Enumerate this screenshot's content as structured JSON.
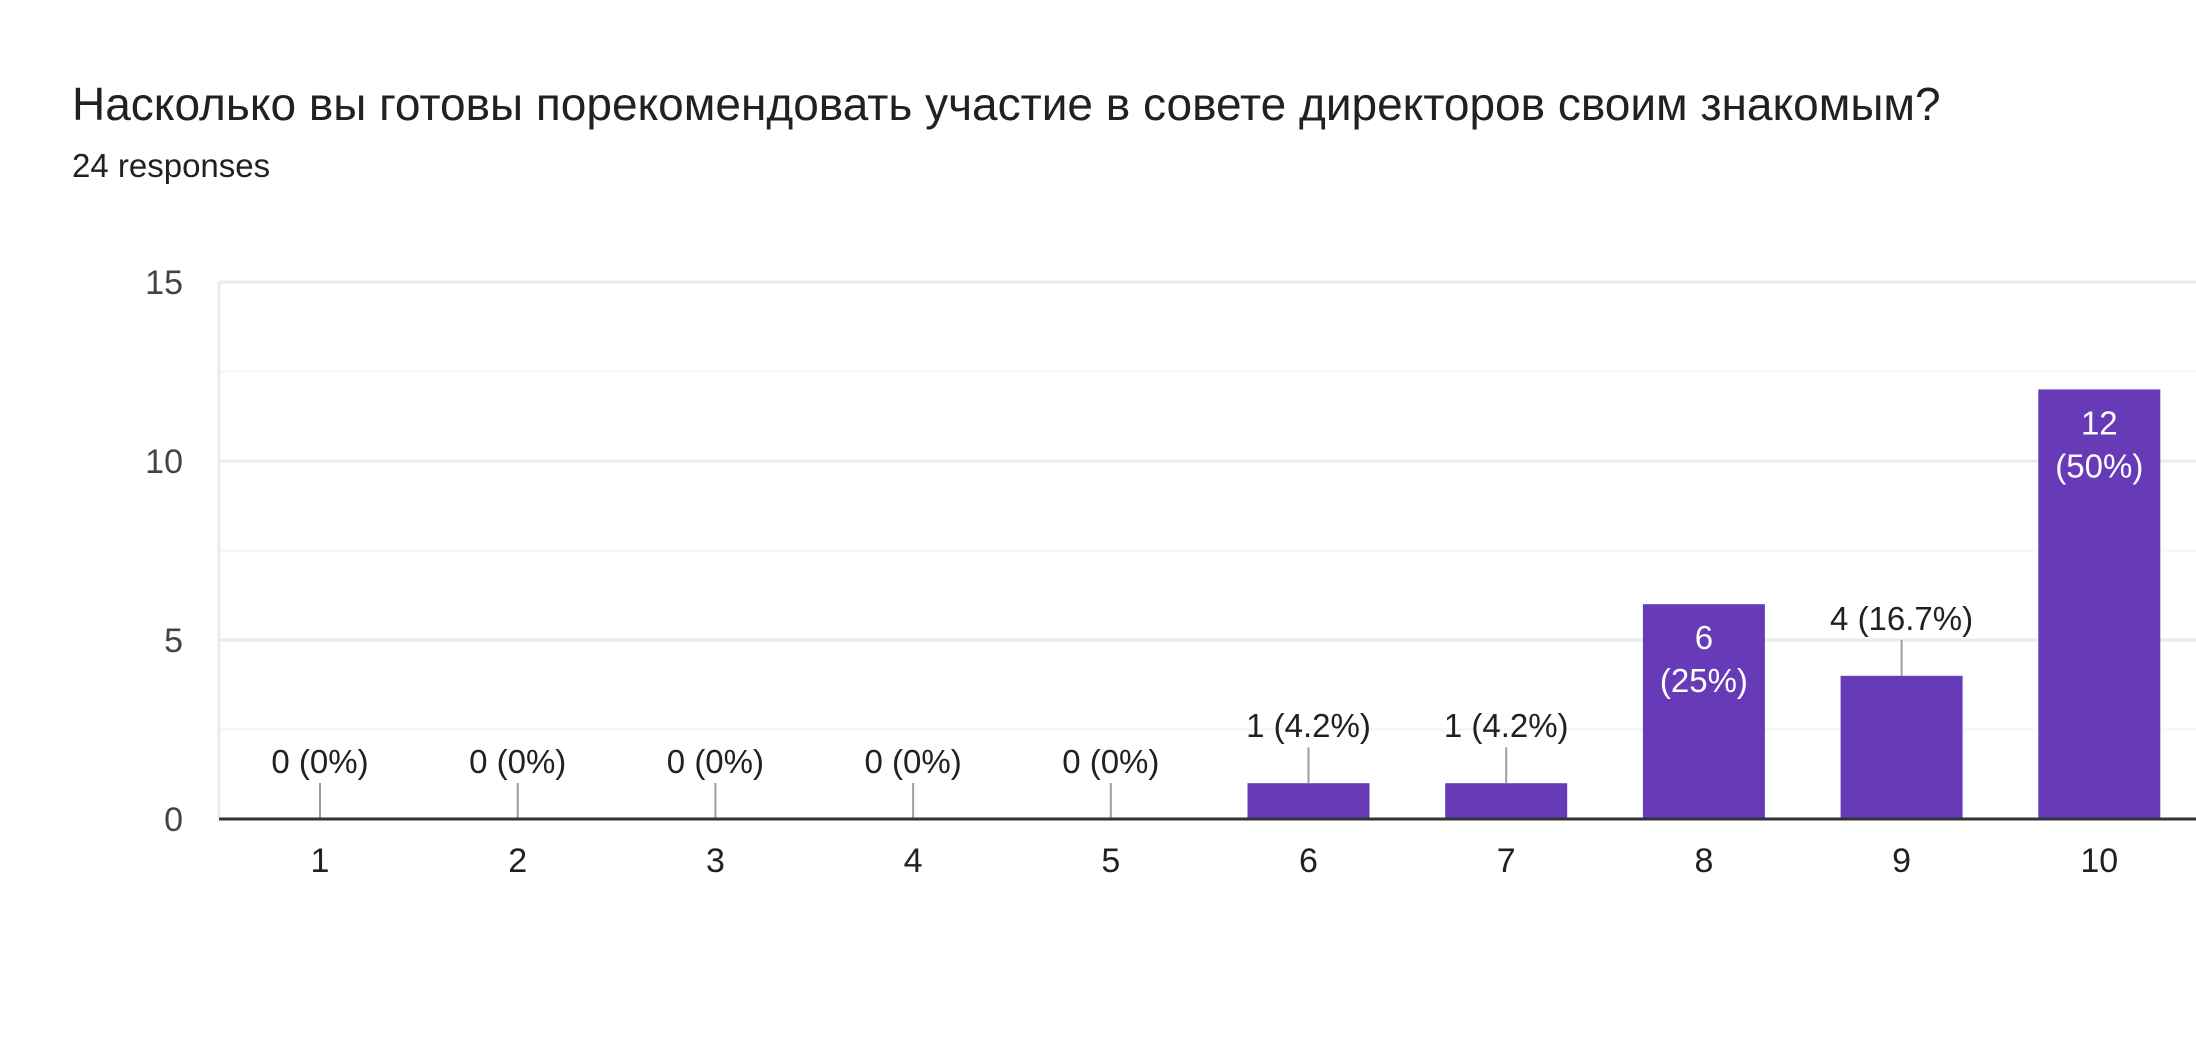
{
  "header": {
    "question": "Насколько вы готовы порекомендовать участие в совете директоров своим знакомым?",
    "responses": "24 responses"
  },
  "colors": {
    "bar": "#673ab7",
    "text": "#202124",
    "axis_text": "#444444",
    "grid": "#ebebeb",
    "grid_minor": "#f5f5f5",
    "axis": "#333333",
    "leader": "#9e9e9e",
    "inside_label": "#ffffff"
  },
  "chart_data": {
    "type": "bar",
    "categories": [
      "1",
      "2",
      "3",
      "4",
      "5",
      "6",
      "7",
      "8",
      "9",
      "10"
    ],
    "values": [
      0,
      0,
      0,
      0,
      0,
      1,
      1,
      6,
      4,
      12
    ],
    "labels": [
      "0 (0%)",
      "0 (0%)",
      "0 (0%)",
      "0 (0%)",
      "0 (0%)",
      "1 (4.2%)",
      "1 (4.2%)",
      "6 (25%)",
      "4 (16.7%)",
      "12 (50%)"
    ],
    "yticks": [
      0,
      5,
      10,
      15
    ],
    "ylim": [
      0,
      15
    ],
    "grid": true,
    "legend": "none"
  }
}
